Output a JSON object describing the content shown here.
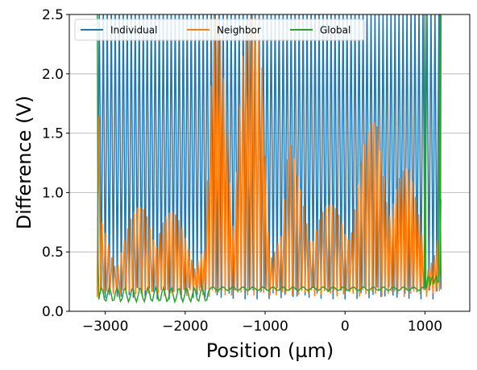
{
  "chart_data": {
    "type": "line",
    "title": "",
    "xlabel": "Position (µm)",
    "ylabel": "Difference (V)",
    "xlim": [
      -3450,
      1560
    ],
    "ylim": [
      0,
      2.5
    ],
    "xticks": [
      -3000,
      -2000,
      -1000,
      0,
      1000
    ],
    "xtick_labels": [
      "−3000",
      "−2000",
      "−1000",
      "0",
      "1000"
    ],
    "yticks": [
      0.0,
      0.5,
      1.0,
      1.5,
      2.0,
      2.5
    ],
    "ytick_labels": [
      "0.0",
      "0.5",
      "1.0",
      "1.5",
      "2.0",
      "2.5"
    ],
    "grid": "horizontal",
    "legend_position": "top-left",
    "legend_columns": 3,
    "x_range_of_data": [
      -3100,
      1200
    ],
    "series": [
      {
        "name": "Individual",
        "color": "#1f77b4",
        "pattern": "dense oscillation between ~0.15 V and above 2.5 V across the whole range",
        "baseline": 0.15,
        "peak": 2.6,
        "period": 50
      },
      {
        "name": "Neighbor",
        "color": "#ff7f0e",
        "pattern": "oscillation with envelope peaking ~2.5 V near -1500 and -1000 µm and ~1.7 V near 400 µm",
        "baseline": 0.12,
        "envelope": [
          [
            -3100,
            2.5
          ],
          [
            -3060,
            0.8
          ],
          [
            -2900,
            0.6
          ],
          [
            -2700,
            0.8
          ],
          [
            -2500,
            0.95
          ],
          [
            -2300,
            0.95
          ],
          [
            -2100,
            0.8
          ],
          [
            -1900,
            0.65
          ],
          [
            -1750,
            0.6
          ],
          [
            -1650,
            2.5
          ],
          [
            -1550,
            2.5
          ],
          [
            -1400,
            1.3
          ],
          [
            -1300,
            2.5
          ],
          [
            -1150,
            2.5
          ],
          [
            -1050,
            2.5
          ],
          [
            -950,
            0.8
          ],
          [
            -800,
            0.75
          ],
          [
            -700,
            1.45
          ],
          [
            -600,
            1.2
          ],
          [
            -400,
            0.95
          ],
          [
            -200,
            0.9
          ],
          [
            0,
            0.9
          ],
          [
            200,
            1.4
          ],
          [
            400,
            1.7
          ],
          [
            600,
            1.3
          ],
          [
            800,
            1.2
          ],
          [
            950,
            0.9
          ],
          [
            1050,
            0.6
          ],
          [
            1150,
            0.6
          ],
          [
            1200,
            1.0
          ]
        ],
        "period": 40
      },
      {
        "name": "Global",
        "color": "#2ca02c",
        "pattern": "flat ~0.19 V with small ripples, spikes above 2.5 V at both ends",
        "value": 0.19,
        "edge_spikes": [
          -3100,
          -3080,
          1000,
          1180,
          1200
        ]
      }
    ]
  }
}
